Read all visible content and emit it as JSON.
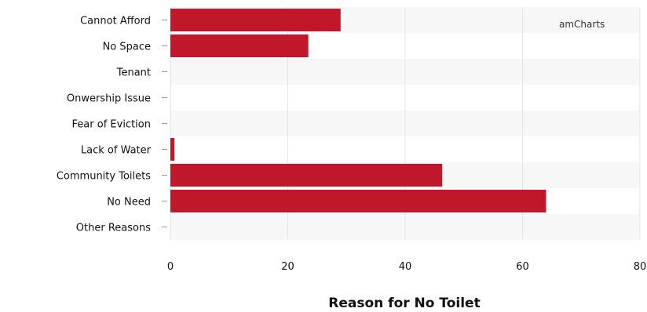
{
  "chart_data": {
    "type": "bar",
    "orientation": "horizontal",
    "categories": [
      "Cannot Afford",
      "No Space",
      "Tenant",
      "Onwership Issue",
      "Fear of Eviction",
      "Lack of Water",
      "Community Toilets",
      "No Need",
      "Other Reasons"
    ],
    "values": [
      29,
      23.5,
      0,
      0,
      0,
      0.7,
      46.3,
      64,
      0
    ],
    "xlabel": "Reason for No Toilet",
    "xlim": [
      0,
      80
    ],
    "xticks": [
      "0",
      "20",
      "40",
      "60",
      "80"
    ],
    "bar_color": "#c0182a",
    "band_color": "#f7f7f7",
    "grid": true,
    "credit": "amCharts"
  }
}
